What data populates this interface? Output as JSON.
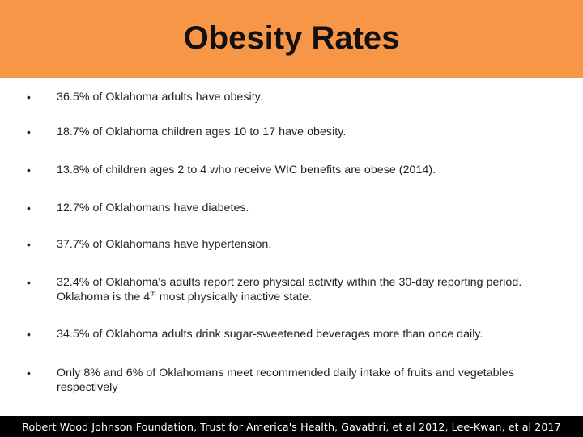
{
  "slide": {
    "title": "Obesity Rates",
    "bullet_glyph": "•",
    "bullets": [
      "36.5% of Oklahoma adults have obesity.",
      "18.7% of Oklahoma children ages 10 to 17 have obesity.",
      "13.8% of children ages 2 to 4 who receive WIC benefits are obese (2014).",
      "12.7% of Oklahomans have diabetes.",
      "37.7% of Oklahomans have hypertension.",
      "32.4% of Oklahoma's adults report zero physical activity within the 30-day reporting period.  Oklahoma is the 4th most physically inactive state.",
      "34.5% of Oklahoma adults drink sugar-sweetened beverages more than once daily.",
      "Only 8% and 6% of Oklahomans meet recommended daily intake of fruits and vegetables respectively"
    ],
    "bullet_6_parts": {
      "before_sup": "32.4% of Oklahoma's adults report zero physical activity within the 30-day reporting period.  Oklahoma is the 4",
      "sup": "th",
      "after_sup": " most physically inactive state."
    },
    "footer": "Robert Wood Johnson Foundation, Trust for America's Health, Gavathri, et al 2012, Lee-Kwan, et al 2017",
    "colors": {
      "header_bg": "#f79646",
      "footer_bg": "#000000",
      "footer_text": "#ffffff",
      "body_text": "#222222"
    }
  }
}
